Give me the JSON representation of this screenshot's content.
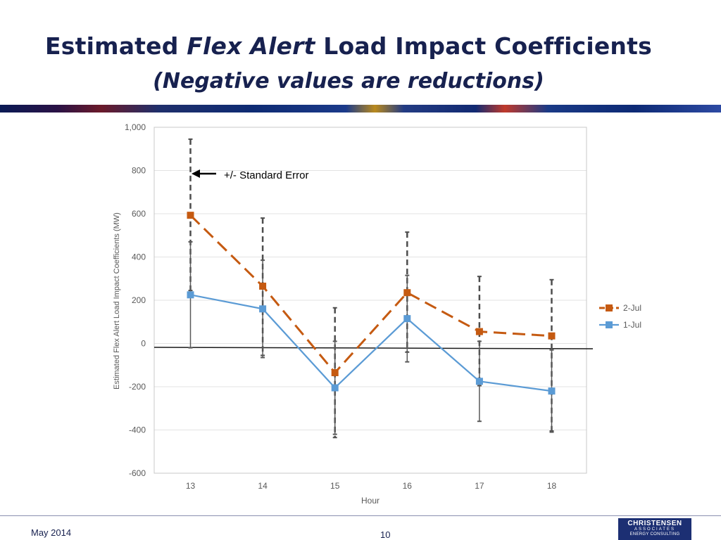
{
  "slide": {
    "title_prefix": "Estimated ",
    "title_italic": "Flex Alert",
    "title_suffix": " Load Impact Coefficients",
    "subtitle": "(Negative values are reductions)",
    "footer_date": "May 2014",
    "page_number": "10",
    "logo": {
      "line1": "CHRISTENSEN",
      "line2": "ASSOCIATES",
      "line3": "ENERGY CONSULTING"
    }
  },
  "chart_data": {
    "type": "line",
    "title": "",
    "xlabel": "Hour",
    "ylabel": "Estimated Flex Alert Load Impact Coefficients (MW)",
    "categories": [
      "13",
      "14",
      "15",
      "16",
      "17",
      "18"
    ],
    "ylim": [
      -600,
      1000
    ],
    "yticks": [
      "1,000",
      "800",
      "600",
      "400",
      "200",
      "0",
      "-200",
      "-400",
      "-600"
    ],
    "ytick_values": [
      1000,
      800,
      600,
      400,
      200,
      0,
      -200,
      -400,
      -600
    ],
    "grid": true,
    "legend_position": "right",
    "annotation": "+/- Standard Error",
    "series": [
      {
        "name": "2-Jul",
        "color": "#c55a11",
        "line_style": "dashed",
        "values": [
          593,
          265,
          -135,
          235,
          55,
          35
        ],
        "error_low": [
          245,
          -55,
          -435,
          -40,
          -195,
          -405
        ],
        "error_high": [
          945,
          580,
          165,
          515,
          310,
          295
        ]
      },
      {
        "name": "1-Jul",
        "color": "#5b9bd5",
        "line_style": "solid",
        "values": [
          225,
          160,
          -205,
          115,
          -175,
          -220
        ],
        "error_low": [
          -20,
          -65,
          -420,
          -85,
          -360,
          -410
        ],
        "error_high": [
          470,
          385,
          10,
          315,
          10,
          -30
        ]
      }
    ]
  }
}
